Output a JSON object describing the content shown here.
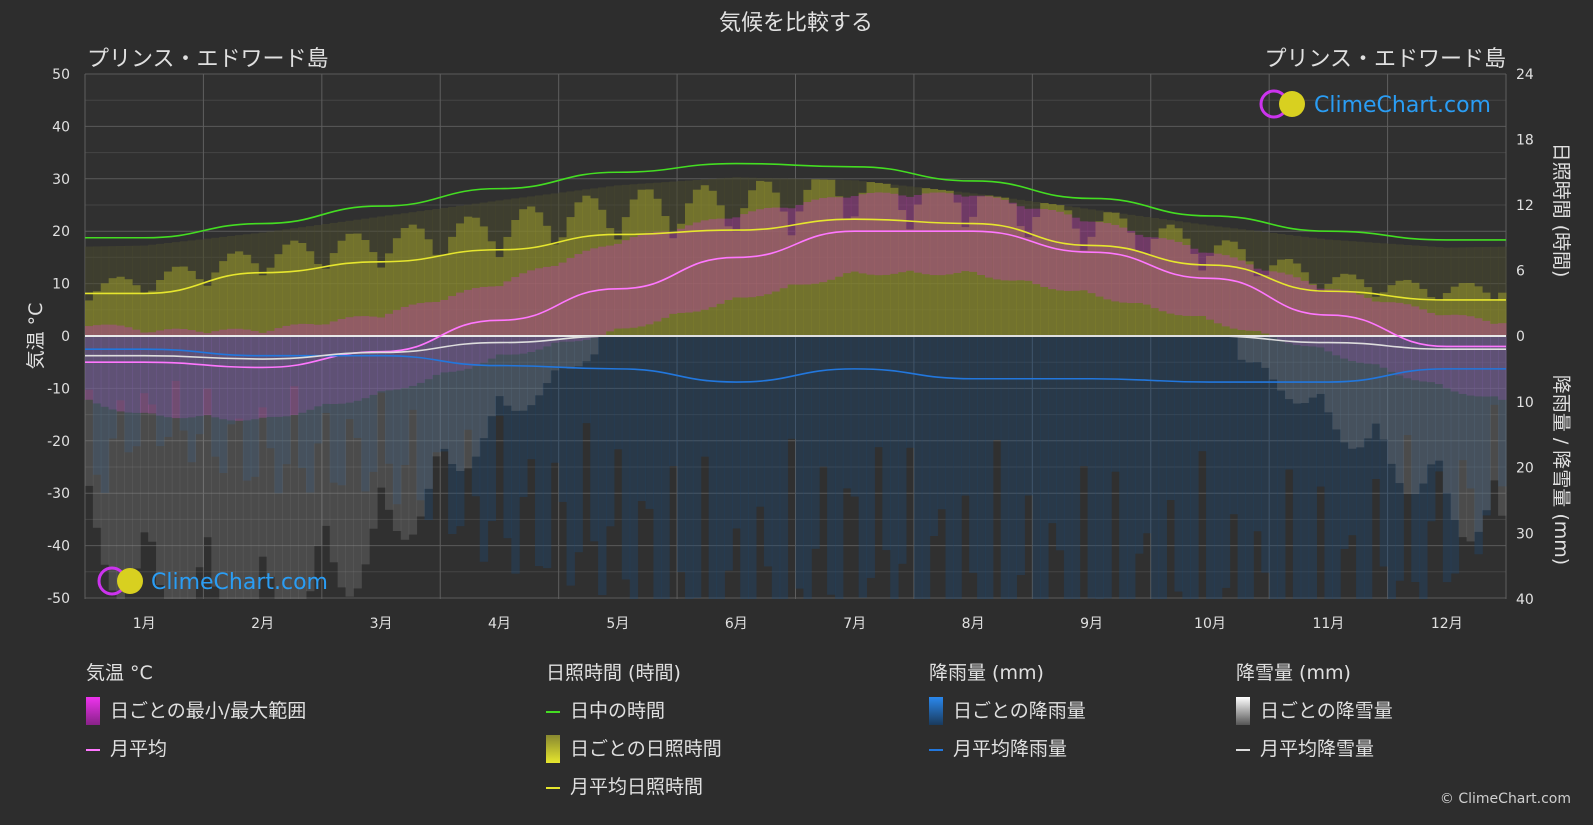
{
  "title": "気候を比較する",
  "location_left": "プリンス・エドワード島",
  "location_right": "プリンス・エドワード島",
  "brand": "ClimeChart.com",
  "copyright": "© ClimeChart.com",
  "axes": {
    "left_label": "気温 °C",
    "right_top_label": "日照時間 (時間)",
    "right_bottom_label": "降雨量 / 降雪量 (mm)",
    "left_ticks": [
      "50",
      "40",
      "30",
      "20",
      "10",
      "0",
      "-10",
      "-20",
      "-30",
      "-40",
      "-50"
    ],
    "right_top_ticks": [
      "24",
      "18",
      "12",
      "6",
      "0"
    ],
    "right_bottom_ticks": [
      "10",
      "20",
      "30",
      "40"
    ]
  },
  "colors": {
    "background": "#2d2d2d",
    "daylight": "#44dd22",
    "sunshine": "#e6e62e",
    "temp_avg": "#ff77ff",
    "temp_range": "#cc33cc",
    "rain": "#2277dd",
    "snow": "#dddddd"
  },
  "legend": {
    "temperature": {
      "header": "気温 °C",
      "range": "日ごとの最小/最大範囲",
      "avg": "月平均"
    },
    "sunshine": {
      "header": "日照時間 (時間)",
      "daylight": "日中の時間",
      "daily": "日ごとの日照時間",
      "avg": "月平均日照時間"
    },
    "rain": {
      "header": "降雨量 (mm)",
      "daily": "日ごとの降雨量",
      "avg": "月平均降雨量"
    },
    "snow": {
      "header": "降雪量 (mm)",
      "daily": "日ごとの降雪量",
      "avg": "月平均降雪量"
    }
  },
  "chart_data": {
    "type": "line",
    "categories": [
      "1月",
      "2月",
      "3月",
      "4月",
      "5月",
      "6月",
      "7月",
      "8月",
      "9月",
      "10月",
      "11月",
      "12月"
    ],
    "ylim_temperature": [
      -50,
      50
    ],
    "ylim_sunshine_hours": [
      0,
      24
    ],
    "ylim_precip_mm": [
      0,
      40
    ],
    "series": [
      {
        "name": "日中の時間",
        "axis": "sunshine",
        "values": [
          9.0,
          10.3,
          11.9,
          13.5,
          15.0,
          15.8,
          15.5,
          14.2,
          12.6,
          11.0,
          9.6,
          8.8
        ]
      },
      {
        "name": "月平均日照時間",
        "axis": "sunshine",
        "values": [
          3.9,
          5.8,
          6.8,
          7.9,
          9.3,
          9.7,
          10.7,
          10.3,
          8.3,
          6.5,
          4.1,
          3.3
        ]
      },
      {
        "name": "月平均",
        "axis": "temperature",
        "values": [
          -5.0,
          -6.0,
          -3.0,
          3.0,
          9.0,
          15.0,
          20.0,
          20.0,
          16.0,
          11.0,
          4.0,
          -2.0
        ]
      },
      {
        "name": "月平均降雨量",
        "axis": "precip",
        "values": [
          2.0,
          3.0,
          3.0,
          4.5,
          5.0,
          7.0,
          5.0,
          6.5,
          6.5,
          7.0,
          7.0,
          5.0
        ]
      },
      {
        "name": "月平均降雪量",
        "axis": "precip",
        "values": [
          3.0,
          3.5,
          2.5,
          1.0,
          0.0,
          0.0,
          0.0,
          0.0,
          0.0,
          0.0,
          1.0,
          2.0
        ]
      },
      {
        "name": "日ごとの最小/最大範囲",
        "axis": "temperature",
        "min": [
          -13,
          -14,
          -9,
          -2,
          3,
          9,
          14,
          14,
          10,
          5,
          -1,
          -8
        ],
        "max": [
          -1,
          -1,
          2,
          8,
          16,
          21,
          25,
          25,
          20,
          14,
          7,
          2
        ]
      }
    ]
  }
}
